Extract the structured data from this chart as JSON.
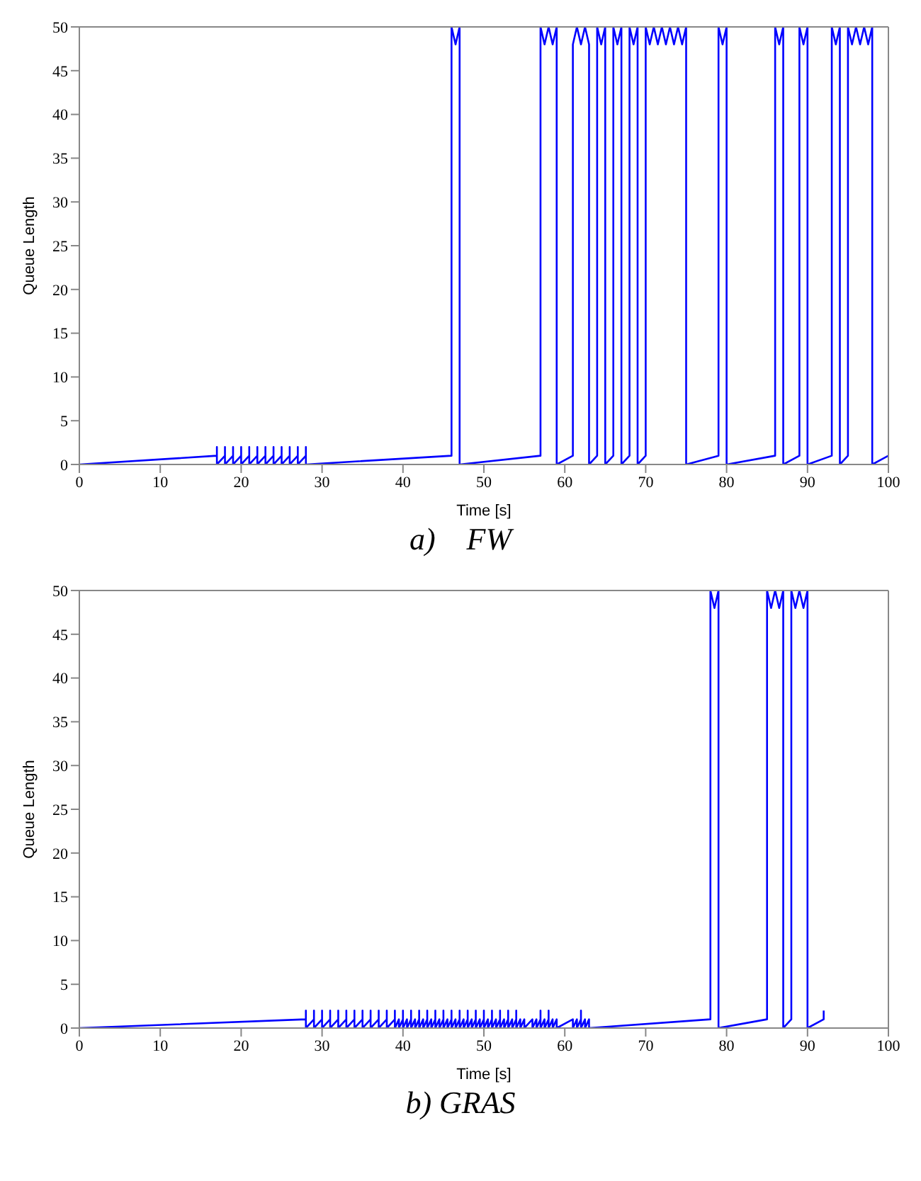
{
  "chart_data": [
    {
      "type": "line",
      "title": "a)    FW",
      "xlabel": "Time [s]",
      "ylabel": "Queue Length",
      "color": "#0000ff",
      "xlim": [
        0,
        100
      ],
      "xticks": [
        0,
        10,
        20,
        30,
        40,
        50,
        60,
        70,
        80,
        90,
        100
      ],
      "ylim": [
        0,
        50
      ],
      "yticks": [
        0,
        5,
        10,
        15,
        20,
        25,
        30,
        35,
        40,
        45,
        50
      ],
      "marker": "none",
      "x": [
        0,
        17,
        17,
        17,
        18,
        18,
        18,
        19,
        19,
        19,
        20,
        20,
        20,
        21,
        21,
        21,
        22,
        22,
        22,
        23,
        23,
        23,
        24,
        24,
        24,
        25,
        25,
        25,
        26,
        26,
        26,
        27,
        27,
        27,
        28,
        28,
        28,
        46,
        46,
        46.5,
        47,
        47,
        57,
        57,
        57.5,
        58,
        58.5,
        59,
        59,
        61,
        61,
        61.5,
        62,
        62.5,
        63,
        63,
        64,
        64,
        64.5,
        65,
        65,
        66,
        66,
        66.5,
        67,
        67,
        68,
        68,
        68.5,
        69,
        69,
        70,
        70,
        70.5,
        71,
        71.5,
        72,
        72.5,
        73,
        73.5,
        74,
        74.5,
        75,
        75,
        79,
        79,
        79.5,
        80,
        80,
        86,
        86,
        86.5,
        87,
        87,
        89,
        89,
        89.5,
        90,
        90,
        93,
        93,
        93.5,
        94,
        94,
        95,
        95,
        95.5,
        96,
        96.5,
        97,
        97.5,
        98,
        98,
        100
      ],
      "values": [
        0,
        1,
        2,
        0,
        1,
        2,
        0,
        1,
        2,
        0,
        1,
        2,
        0,
        1,
        2,
        0,
        1,
        2,
        0,
        1,
        2,
        0,
        1,
        2,
        0,
        1,
        2,
        0,
        1,
        2,
        0,
        1,
        2,
        0,
        1,
        2,
        0,
        1,
        50,
        48,
        50,
        0,
        1,
        50,
        48,
        50,
        48,
        50,
        0,
        1,
        48,
        50,
        48,
        50,
        48,
        0,
        1,
        50,
        48,
        50,
        0,
        1,
        50,
        48,
        50,
        0,
        1,
        50,
        48,
        50,
        0,
        1,
        50,
        48,
        50,
        48,
        50,
        48,
        50,
        48,
        50,
        48,
        50,
        0,
        1,
        50,
        48,
        50,
        0,
        1,
        50,
        48,
        50,
        0,
        1,
        50,
        48,
        50,
        0,
        1,
        50,
        48,
        50,
        0,
        1,
        50,
        48,
        50,
        48,
        50,
        48,
        50,
        0,
        1
      ]
    },
    {
      "type": "line",
      "title": "b) GRAS",
      "xlabel": "Time [s]",
      "ylabel": "Queue Length",
      "color": "#0000ff",
      "xlim": [
        0,
        100
      ],
      "xticks": [
        0,
        10,
        20,
        30,
        40,
        50,
        60,
        70,
        80,
        90,
        100
      ],
      "ylim": [
        0,
        50
      ],
      "yticks": [
        0,
        5,
        10,
        15,
        20,
        25,
        30,
        35,
        40,
        45,
        50
      ],
      "marker": "none",
      "x": [
        0,
        28,
        28,
        28,
        29,
        29,
        29,
        30,
        30,
        30,
        31,
        31,
        31,
        32,
        32,
        32,
        33,
        33,
        33,
        34,
        34,
        34,
        35,
        35,
        35,
        36,
        36,
        36,
        37,
        37,
        37,
        38,
        38,
        38,
        39,
        39,
        39,
        39.5,
        39.5,
        40,
        40,
        40,
        40.5,
        40.5,
        41,
        41,
        41,
        41.5,
        41.5,
        42,
        42,
        42,
        42.5,
        42.5,
        43,
        43,
        43,
        43.5,
        43.5,
        44,
        44,
        44,
        44.5,
        44.5,
        45,
        45,
        45,
        45.5,
        45.5,
        46,
        46,
        46,
        46.5,
        46.5,
        47,
        47,
        47,
        47.5,
        47.5,
        48,
        48,
        48,
        48.5,
        48.5,
        49,
        49,
        49,
        49.5,
        49.5,
        50,
        50,
        50,
        50.5,
        50.5,
        51,
        51,
        51,
        51.5,
        51.5,
        52,
        52,
        52,
        52.5,
        52.5,
        53,
        53,
        53,
        53.5,
        53.5,
        54,
        54,
        54,
        54.5,
        54.5,
        55,
        55,
        56,
        56,
        56.5,
        56.5,
        57,
        57,
        57,
        57.5,
        57.5,
        58,
        58,
        58,
        58.5,
        58.5,
        59,
        59,
        61,
        61,
        61.5,
        61.5,
        62,
        62,
        62,
        62.5,
        62.5,
        63,
        63,
        78,
        78,
        78.5,
        79,
        79,
        85,
        85,
        85.5,
        86,
        86.5,
        87,
        87,
        88,
        88,
        88.5,
        89,
        89.5,
        90,
        90,
        92,
        92
      ],
      "values": [
        0,
        1,
        2,
        0,
        1,
        2,
        0,
        1,
        2,
        0,
        1,
        2,
        0,
        1,
        2,
        0,
        1,
        2,
        0,
        1,
        2,
        0,
        1,
        2,
        0,
        1,
        2,
        0,
        1,
        2,
        0,
        1,
        2,
        0,
        1,
        2,
        0,
        1,
        0,
        1,
        2,
        0,
        1,
        0,
        1,
        2,
        0,
        1,
        0,
        1,
        2,
        0,
        1,
        0,
        1,
        2,
        0,
        1,
        0,
        1,
        2,
        0,
        1,
        0,
        1,
        2,
        0,
        1,
        0,
        1,
        2,
        0,
        1,
        0,
        1,
        2,
        0,
        1,
        0,
        1,
        2,
        0,
        1,
        0,
        1,
        2,
        0,
        1,
        0,
        1,
        2,
        0,
        1,
        0,
        1,
        2,
        0,
        1,
        0,
        1,
        2,
        0,
        1,
        0,
        1,
        2,
        0,
        1,
        0,
        1,
        2,
        0,
        1,
        0,
        1,
        0,
        1,
        0,
        1,
        0,
        1,
        2,
        0,
        1,
        0,
        1,
        2,
        0,
        1,
        0,
        1,
        0,
        1,
        0,
        1,
        0,
        1,
        2,
        0,
        1,
        0,
        1,
        0,
        1,
        50,
        48,
        50,
        0,
        1,
        50,
        48,
        50,
        48,
        50,
        0,
        1,
        50,
        48,
        50,
        48,
        50,
        0,
        1,
        2
      ]
    }
  ]
}
